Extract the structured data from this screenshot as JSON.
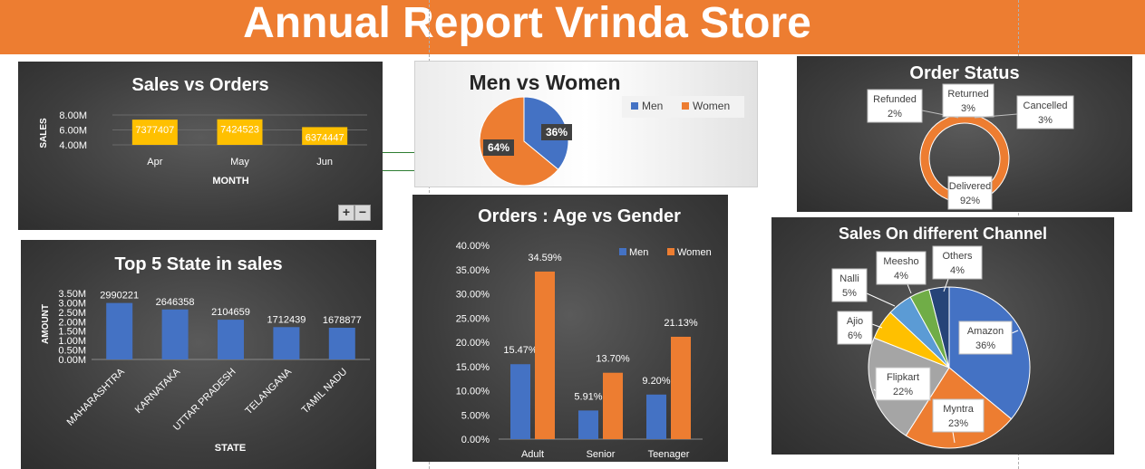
{
  "page": {
    "title": "Annual Report Vrinda Store"
  },
  "colors": {
    "banner": "#ed7d31",
    "men": "#4472c4",
    "women": "#ed7d31",
    "sales_bar": "#ffc000"
  },
  "controls": {
    "zoom_in": "+",
    "zoom_out": "−"
  },
  "chart_data": [
    {
      "id": "sales_orders",
      "type": "bar",
      "title": "Sales vs Orders",
      "xlabel": "MONTH",
      "ylabel": "SALES",
      "categories": [
        "Apr",
        "May",
        "Jun"
      ],
      "values": [
        7377407,
        7424523,
        6374447
      ],
      "data_labels": [
        "7377407",
        "7424523",
        "6374447"
      ],
      "y_ticks": [
        "8.00M",
        "6.00M",
        "4.00M"
      ],
      "ylim": [
        4000000,
        8000000
      ],
      "grid": true
    },
    {
      "id": "men_women",
      "type": "pie",
      "title": "Men vs Women",
      "categories": [
        "Men",
        "Women"
      ],
      "values": [
        36,
        64
      ],
      "data_labels": [
        "36%",
        "64%"
      ],
      "legend": "top-right"
    },
    {
      "id": "order_status",
      "type": "pie",
      "title": "Order Status",
      "categories": [
        "Delivered",
        "Refunded",
        "Returned",
        "Cancelled"
      ],
      "values": [
        92,
        2,
        3,
        3
      ],
      "data_labels": [
        "92%",
        "2%",
        "3%",
        "3%"
      ]
    },
    {
      "id": "top_states",
      "type": "bar",
      "title": "Top 5 State in sales",
      "xlabel": "STATE",
      "ylabel": "AMOUNT",
      "categories": [
        "MAHARASHTRA",
        "KARNATAKA",
        "UTTAR PRADESH",
        "TELANGANA",
        "TAMIL NADU"
      ],
      "values": [
        2990221,
        2646358,
        2104659,
        1712439,
        1678877
      ],
      "data_labels": [
        "2990221",
        "2646358",
        "2104659",
        "1712439",
        "1678877"
      ],
      "y_ticks": [
        "3.50M",
        "3.00M",
        "2.50M",
        "2.00M",
        "1.50M",
        "1.00M",
        "0.50M",
        "0.00M"
      ],
      "ylim": [
        0,
        3500000
      ]
    },
    {
      "id": "age_gender",
      "type": "bar",
      "title": "Orders : Age vs Gender",
      "categories": [
        "Adult",
        "Senior",
        "Teenager"
      ],
      "series": [
        {
          "name": "Men",
          "values": [
            15.47,
            5.91,
            9.2
          ],
          "data_labels": [
            "15.47%",
            "5.91%",
            "9.20%"
          ]
        },
        {
          "name": "Women",
          "values": [
            34.59,
            13.7,
            21.13
          ],
          "data_labels": [
            "34.59%",
            "13.70%",
            "21.13%"
          ]
        }
      ],
      "y_ticks": [
        "40.00%",
        "35.00%",
        "30.00%",
        "25.00%",
        "20.00%",
        "15.00%",
        "10.00%",
        "5.00%",
        "0.00%"
      ],
      "ylim": [
        0,
        40
      ],
      "legend": "top-right"
    },
    {
      "id": "channels",
      "type": "pie",
      "title": "Sales On different Channel",
      "categories": [
        "Amazon",
        "Myntra",
        "Flipkart",
        "Ajio",
        "Nalli",
        "Meesho",
        "Others"
      ],
      "values": [
        36,
        23,
        22,
        6,
        5,
        4,
        4
      ],
      "data_labels": [
        "36%",
        "23%",
        "22%",
        "6%",
        "5%",
        "4%",
        "4%"
      ]
    }
  ]
}
